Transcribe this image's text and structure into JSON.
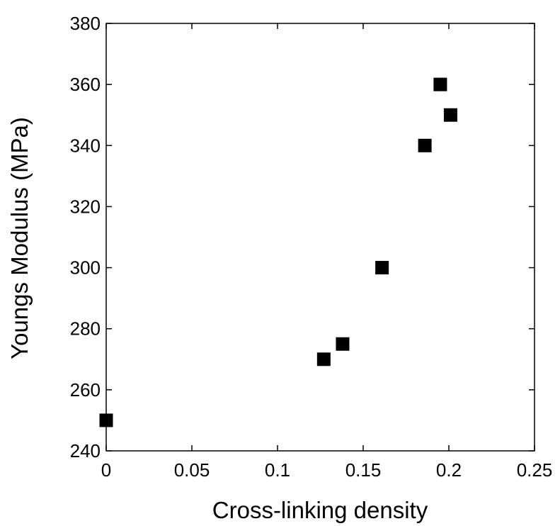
{
  "chart_data": {
    "type": "scatter",
    "title": "",
    "xlabel": "Cross-linking density",
    "ylabel": "Youngs Modulus (MPa)",
    "xlim": [
      0,
      0.25
    ],
    "ylim": [
      240,
      380
    ],
    "xticks": [
      0,
      0.05,
      0.1,
      0.15,
      0.2,
      0.25
    ],
    "xtick_labels": [
      "0",
      "0.05",
      "0.1",
      "0.15",
      "0.2",
      "0.25"
    ],
    "yticks": [
      240,
      260,
      280,
      300,
      320,
      340,
      360,
      380
    ],
    "ytick_labels": [
      "240",
      "260",
      "280",
      "300",
      "320",
      "340",
      "360",
      "380"
    ],
    "grid": false,
    "marker": "square",
    "marker_color": "#000000",
    "series": [
      {
        "x": [
          0.0,
          0.127,
          0.138,
          0.161,
          0.186,
          0.195,
          0.201
        ],
        "y": [
          250,
          270,
          275,
          300,
          340,
          360,
          350
        ]
      }
    ]
  }
}
